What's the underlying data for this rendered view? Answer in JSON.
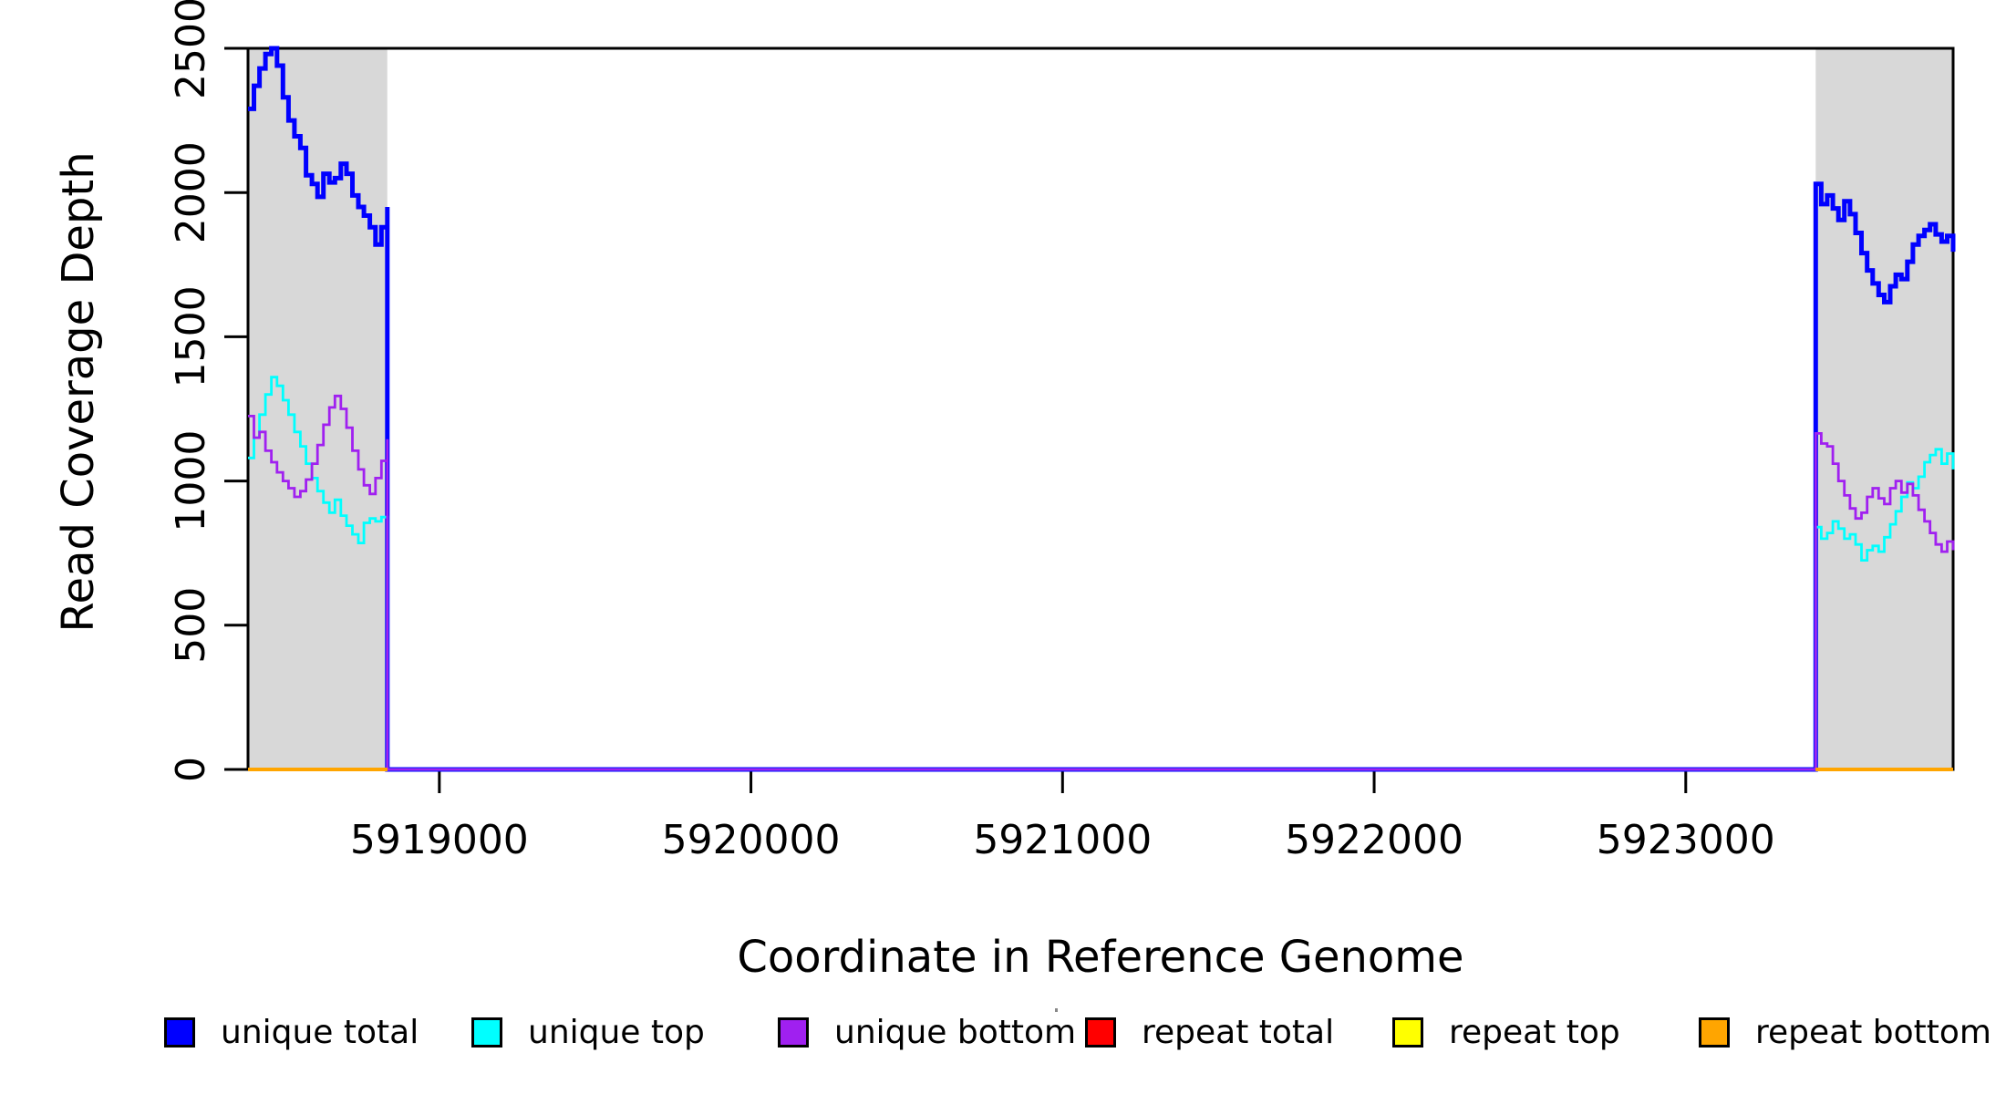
{
  "chart_data": {
    "type": "line",
    "title": "",
    "xlabel": "Coordinate in Reference Genome",
    "ylabel": "Read Coverage Depth",
    "xlim": [
      5918386,
      5923858
    ],
    "ylim": [
      0,
      2500
    ],
    "x_ticks": [
      5919000,
      5920000,
      5921000,
      5922000,
      5923000
    ],
    "y_ticks": [
      0,
      500,
      1000,
      1500,
      2000,
      2500
    ],
    "grid": false,
    "legend_position": "bottom",
    "highlight_regions": [
      {
        "x0": 5918386,
        "x1": 5918833,
        "color": "#D8D8D8"
      },
      {
        "x0": 5923417,
        "x1": 5923858,
        "color": "#D8D8D8"
      }
    ],
    "legend": [
      {
        "label": "unique total",
        "color": "#0000FF"
      },
      {
        "label": "unique top",
        "color": "#00FFFF"
      },
      {
        "label": "unique bottom",
        "color": "#A020F0"
      },
      {
        "label": "repeat total",
        "color": "#FF0000"
      },
      {
        "label": "repeat top",
        "color": "#FFFF00"
      },
      {
        "label": "repeat bottom",
        "color": "#FFA500"
      }
    ],
    "series": [
      {
        "name": "unique total",
        "color": "#0000FF",
        "width": 5,
        "segments": [
          [
            [
              5918386,
              2290
            ],
            [
              5918405,
              2370
            ],
            [
              5918423,
              2430
            ],
            [
              5918442,
              2480
            ],
            [
              5918461,
              2500
            ],
            [
              5918479,
              2440
            ],
            [
              5918498,
              2330
            ],
            [
              5918516,
              2250
            ],
            [
              5918535,
              2195
            ],
            [
              5918554,
              2155
            ],
            [
              5918572,
              2060
            ],
            [
              5918591,
              2030
            ],
            [
              5918609,
              1985
            ],
            [
              5918628,
              2065
            ],
            [
              5918647,
              2035
            ],
            [
              5918665,
              2050
            ],
            [
              5918684,
              2100
            ],
            [
              5918702,
              2065
            ],
            [
              5918721,
              1990
            ],
            [
              5918740,
              1950
            ],
            [
              5918758,
              1920
            ],
            [
              5918777,
              1880
            ],
            [
              5918795,
              1820
            ],
            [
              5918814,
              1880
            ],
            [
              5918833,
              1950
            ],
            [
              5918833,
              0
            ],
            [
              5923417,
              0
            ],
            [
              5923417,
              2030
            ],
            [
              5923435,
              1960
            ],
            [
              5923454,
              1990
            ],
            [
              5923472,
              1945
            ],
            [
              5923490,
              1905
            ],
            [
              5923509,
              1970
            ],
            [
              5923527,
              1925
            ],
            [
              5923545,
              1860
            ],
            [
              5923564,
              1790
            ],
            [
              5923582,
              1730
            ],
            [
              5923600,
              1685
            ],
            [
              5923619,
              1645
            ],
            [
              5923637,
              1620
            ],
            [
              5923656,
              1675
            ],
            [
              5923674,
              1715
            ],
            [
              5923692,
              1700
            ],
            [
              5923711,
              1760
            ],
            [
              5923729,
              1820
            ],
            [
              5923747,
              1850
            ],
            [
              5923766,
              1870
            ],
            [
              5923784,
              1890
            ],
            [
              5923802,
              1855
            ],
            [
              5923821,
              1830
            ],
            [
              5923839,
              1850
            ],
            [
              5923858,
              1795
            ]
          ]
        ]
      },
      {
        "name": "unique top",
        "color": "#00FFFF",
        "width": 2.8,
        "segments": [
          [
            [
              5918386,
              1080
            ],
            [
              5918405,
              1150
            ],
            [
              5918423,
              1230
            ],
            [
              5918442,
              1300
            ],
            [
              5918461,
              1360
            ],
            [
              5918479,
              1330
            ],
            [
              5918498,
              1280
            ],
            [
              5918516,
              1230
            ],
            [
              5918535,
              1170
            ],
            [
              5918554,
              1120
            ],
            [
              5918572,
              1060
            ],
            [
              5918591,
              1010
            ],
            [
              5918609,
              965
            ],
            [
              5918628,
              925
            ],
            [
              5918647,
              890
            ],
            [
              5918665,
              935
            ],
            [
              5918684,
              880
            ],
            [
              5918702,
              845
            ],
            [
              5918721,
              815
            ],
            [
              5918740,
              785
            ],
            [
              5918758,
              855
            ],
            [
              5918777,
              870
            ],
            [
              5918795,
              860
            ],
            [
              5918814,
              875
            ],
            [
              5918833,
              840
            ],
            [
              5918833,
              0
            ],
            [
              5923417,
              0
            ],
            [
              5923417,
              840
            ],
            [
              5923435,
              800
            ],
            [
              5923454,
              820
            ],
            [
              5923472,
              860
            ],
            [
              5923490,
              835
            ],
            [
              5923509,
              800
            ],
            [
              5923527,
              815
            ],
            [
              5923545,
              780
            ],
            [
              5923564,
              725
            ],
            [
              5923582,
              760
            ],
            [
              5923600,
              775
            ],
            [
              5923619,
              755
            ],
            [
              5923637,
              805
            ],
            [
              5923656,
              850
            ],
            [
              5923674,
              895
            ],
            [
              5923692,
              945
            ],
            [
              5923711,
              995
            ],
            [
              5923729,
              975
            ],
            [
              5923747,
              1015
            ],
            [
              5923766,
              1065
            ],
            [
              5923784,
              1090
            ],
            [
              5923802,
              1110
            ],
            [
              5923821,
              1060
            ],
            [
              5923839,
              1095
            ],
            [
              5923858,
              1040
            ]
          ]
        ]
      },
      {
        "name": "unique bottom",
        "color": "#A020F0",
        "width": 2.8,
        "segments": [
          [
            [
              5918386,
              1225
            ],
            [
              5918405,
              1150
            ],
            [
              5918423,
              1170
            ],
            [
              5918442,
              1105
            ],
            [
              5918461,
              1065
            ],
            [
              5918479,
              1030
            ],
            [
              5918498,
              1000
            ],
            [
              5918516,
              975
            ],
            [
              5918535,
              945
            ],
            [
              5918554,
              965
            ],
            [
              5918572,
              1005
            ],
            [
              5918591,
              1060
            ],
            [
              5918609,
              1125
            ],
            [
              5918628,
              1195
            ],
            [
              5918647,
              1255
            ],
            [
              5918665,
              1295
            ],
            [
              5918684,
              1250
            ],
            [
              5918702,
              1185
            ],
            [
              5918721,
              1105
            ],
            [
              5918740,
              1040
            ],
            [
              5918758,
              985
            ],
            [
              5918777,
              955
            ],
            [
              5918795,
              1010
            ],
            [
              5918814,
              1070
            ],
            [
              5918833,
              1145
            ],
            [
              5918833,
              0
            ],
            [
              5923417,
              0
            ],
            [
              5923417,
              1165
            ],
            [
              5923435,
              1130
            ],
            [
              5923454,
              1120
            ],
            [
              5923472,
              1060
            ],
            [
              5923490,
              1000
            ],
            [
              5923509,
              950
            ],
            [
              5923527,
              905
            ],
            [
              5923545,
              870
            ],
            [
              5923564,
              890
            ],
            [
              5923582,
              945
            ],
            [
              5923600,
              975
            ],
            [
              5923619,
              940
            ],
            [
              5923637,
              920
            ],
            [
              5923656,
              975
            ],
            [
              5923674,
              1000
            ],
            [
              5923692,
              960
            ],
            [
              5923711,
              990
            ],
            [
              5923729,
              950
            ],
            [
              5923747,
              900
            ],
            [
              5923766,
              860
            ],
            [
              5923784,
              820
            ],
            [
              5923802,
              780
            ],
            [
              5923821,
              755
            ],
            [
              5923839,
              790
            ],
            [
              5923858,
              760
            ]
          ]
        ]
      },
      {
        "name": "repeat total",
        "color": "#FF0000",
        "width": 3,
        "segments": [
          [
            [
              5918386,
              0
            ],
            [
              5918833,
              0
            ]
          ],
          [
            [
              5923417,
              0
            ],
            [
              5923858,
              0
            ]
          ]
        ]
      },
      {
        "name": "repeat top",
        "color": "#FFFF00",
        "width": 3,
        "segments": [
          [
            [
              5918386,
              0
            ],
            [
              5918833,
              0
            ]
          ],
          [
            [
              5923417,
              0
            ],
            [
              5923858,
              0
            ]
          ]
        ]
      },
      {
        "name": "repeat bottom",
        "color": "#FFA500",
        "width": 4,
        "segments": [
          [
            [
              5918386,
              0
            ],
            [
              5918833,
              0
            ]
          ],
          [
            [
              5923417,
              0
            ],
            [
              5923858,
              0
            ]
          ]
        ]
      }
    ]
  }
}
